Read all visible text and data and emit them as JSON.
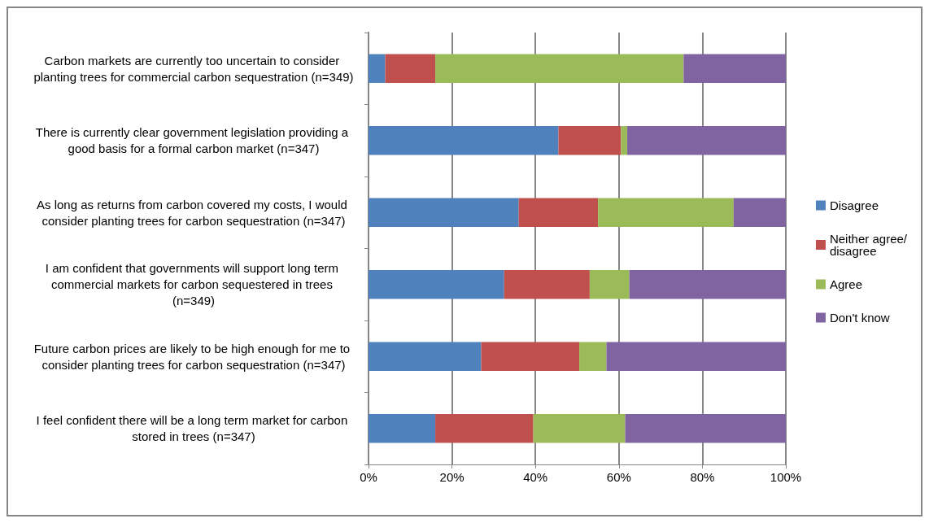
{
  "chart_data": {
    "type": "bar",
    "orientation": "horizontal",
    "stacked": true,
    "categories": [
      "Carbon markets are currently too uncertain to consider planting trees for commercial carbon sequestration (n=349)",
      "There is currently clear government legislation providing a good basis for a formal carbon market (n=347)",
      "As long as returns from carbon covered my costs, I would consider planting trees for carbon sequestration (n=347)",
      "I am confident that governments will support long term commercial markets for carbon sequestered in trees (n=349)",
      "Future carbon prices are likely to be high enough for me to consider planting trees for carbon sequestration (n=347)",
      "I feel confident there will be a long term market for carbon stored in trees (n=347)"
    ],
    "series": [
      {
        "name": "Disagree",
        "color": "#4f81bd",
        "values": [
          4,
          45.5,
          36,
          32.5,
          27,
          16
        ]
      },
      {
        "name": "Neither agree/disagree",
        "color": "#c0504d",
        "values": [
          12,
          15,
          19,
          20.5,
          23.5,
          23.5
        ]
      },
      {
        "name": "Agree",
        "color": "#9bbb59",
        "values": [
          59.5,
          1.5,
          32.5,
          9.5,
          6.5,
          22
        ]
      },
      {
        "name": "Don't know",
        "color": "#8064a2",
        "values": [
          24.5,
          38,
          12.5,
          37.5,
          43,
          38.5
        ]
      }
    ],
    "xlim": [
      0,
      100
    ],
    "xticks": [
      {
        "value": 0,
        "label": "0%"
      },
      {
        "value": 20,
        "label": "20%"
      },
      {
        "value": 40,
        "label": "40%"
      },
      {
        "value": 60,
        "label": "60%"
      },
      {
        "value": 80,
        "label": "80%"
      },
      {
        "value": 100,
        "label": "100%"
      }
    ],
    "grid": "x",
    "legend": "right"
  }
}
